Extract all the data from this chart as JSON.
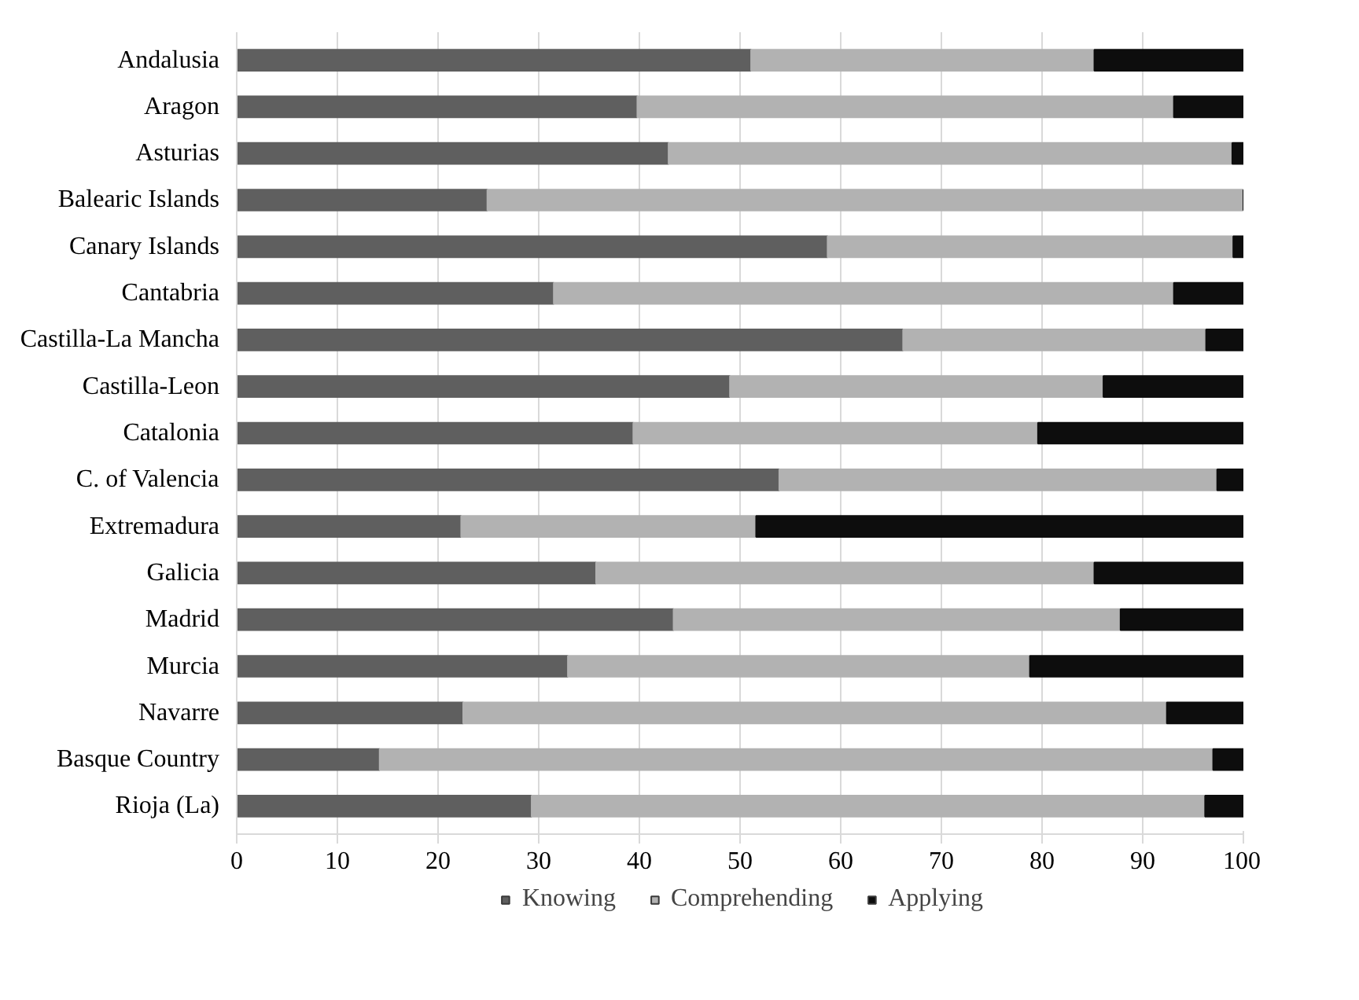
{
  "chart_data": {
    "type": "bar",
    "orientation": "horizontal",
    "stacked": true,
    "categories": [
      "Andalusia",
      "Aragon",
      "Asturias",
      "Balearic Islands",
      "Canary Islands",
      "Cantabria",
      "Castilla-La Mancha",
      "Castilla-Leon",
      "Catalonia",
      "C. of Valencia",
      "Extremadura",
      "Galicia",
      "Madrid",
      "Murcia",
      "Navarre",
      "Basque Country",
      "Rioja (La)"
    ],
    "series": [
      {
        "name": "Knowing",
        "color": "#5f5f5f",
        "values": [
          51.1,
          39.8,
          42.9,
          24.9,
          58.7,
          31.5,
          66.2,
          49.0,
          39.4,
          53.9,
          22.3,
          35.7,
          43.4,
          32.9,
          22.5,
          14.2,
          29.3
        ]
      },
      {
        "name": "Comprehending",
        "color": "#b2b2b2",
        "values": [
          34.1,
          53.3,
          56.0,
          75.1,
          40.3,
          61.6,
          30.1,
          37.1,
          40.2,
          43.5,
          29.3,
          49.5,
          44.4,
          45.9,
          69.9,
          82.8,
          66.9
        ]
      },
      {
        "name": "Applying",
        "color": "#0d0d0d",
        "values": [
          14.8,
          6.9,
          1.1,
          0,
          1.0,
          6.9,
          3.7,
          13.9,
          20.4,
          2.6,
          48.4,
          14.8,
          12.2,
          21.2,
          7.6,
          3.0,
          3.8
        ]
      }
    ],
    "xlim": [
      0,
      100
    ],
    "xticks": [
      0,
      10,
      20,
      30,
      40,
      50,
      60,
      70,
      80,
      90,
      100
    ],
    "grid": "x",
    "legend": "bottom"
  }
}
